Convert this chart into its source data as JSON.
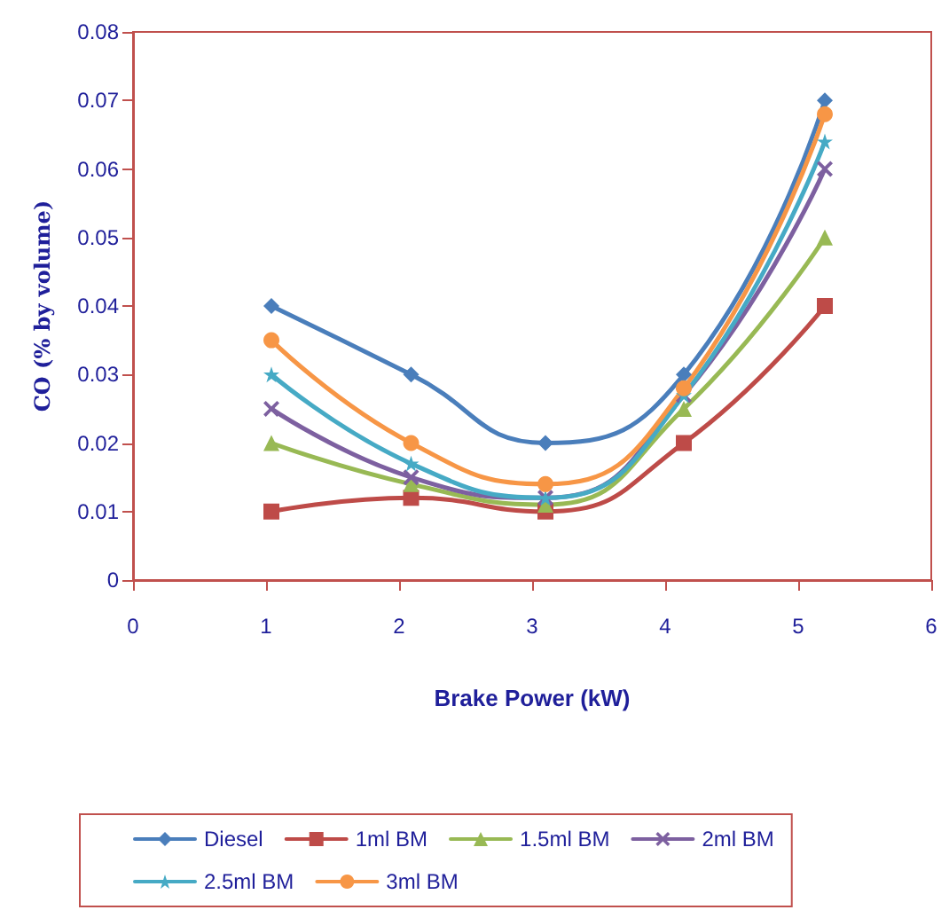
{
  "chart_data": {
    "type": "line",
    "xlabel": "Brake Power (kW)",
    "ylabel": "CO (% by volume)",
    "x": [
      1.04,
      2.09,
      3.1,
      4.14,
      5.2
    ],
    "xlim": [
      0,
      6
    ],
    "xticks": [
      0,
      1,
      2,
      3,
      4,
      5,
      6
    ],
    "ylim": [
      0,
      0.08
    ],
    "yticks": [
      0,
      0.01,
      0.02,
      0.03,
      0.04,
      0.05,
      0.06,
      0.07,
      0.08
    ],
    "grid": false,
    "legend": "bottom",
    "line_style": "solid",
    "series": [
      {
        "name": "Diesel",
        "color": "#4a7ebb",
        "marker": "diamond",
        "values": [
          0.04,
          0.03,
          0.02,
          0.03,
          0.07
        ]
      },
      {
        "name": "1ml BM",
        "color": "#be4b48",
        "marker": "square",
        "values": [
          0.01,
          0.012,
          0.01,
          0.02,
          0.04
        ]
      },
      {
        "name": "1.5ml BM",
        "color": "#98b954",
        "marker": "triangle",
        "values": [
          0.02,
          0.014,
          0.011,
          0.025,
          0.05
        ]
      },
      {
        "name": "2ml BM",
        "color": "#7d60a0",
        "marker": "cross",
        "values": [
          0.025,
          0.015,
          0.012,
          0.027,
          0.06
        ]
      },
      {
        "name": "2.5ml BM",
        "color": "#46aac5",
        "marker": "star",
        "values": [
          0.03,
          0.017,
          0.012,
          0.027,
          0.064
        ]
      },
      {
        "name": "3ml BM",
        "color": "#f79646",
        "marker": "circle",
        "values": [
          0.035,
          0.02,
          0.014,
          0.028,
          0.068
        ]
      }
    ]
  }
}
